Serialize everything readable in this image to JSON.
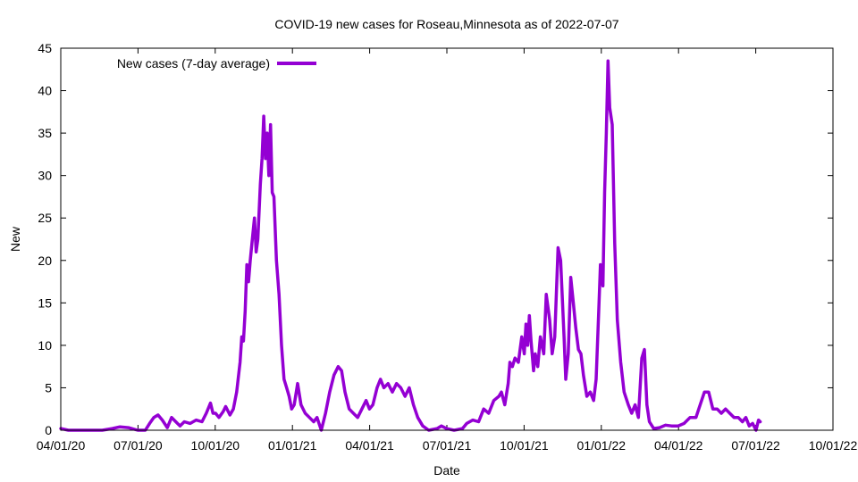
{
  "chart_data": {
    "type": "line",
    "title": "COVID-19 new cases for Roseau,Minnesota as of 2022-07-07",
    "xlabel": "Date",
    "ylabel": "New",
    "xlim": [
      "2020-04-01",
      "2022-10-01"
    ],
    "ylim": [
      0,
      45
    ],
    "grid": false,
    "legend_position": "top-left",
    "x_tick_labels": [
      "04/01/20",
      "07/01/20",
      "10/01/20",
      "01/01/21",
      "04/01/21",
      "07/01/21",
      "10/01/21",
      "01/01/22",
      "04/01/22",
      "07/01/22",
      "10/01/22"
    ],
    "y_tick_labels": [
      "0",
      "5",
      "10",
      "15",
      "20",
      "25",
      "30",
      "35",
      "40",
      "45"
    ],
    "series": [
      {
        "name": "New cases (7-day average)",
        "color": "#9400d3",
        "points": [
          [
            "2020-04-01",
            0.2
          ],
          [
            "2020-04-10",
            0
          ],
          [
            "2020-05-01",
            0
          ],
          [
            "2020-05-20",
            0
          ],
          [
            "2020-06-01",
            0.2
          ],
          [
            "2020-06-10",
            0.4
          ],
          [
            "2020-06-20",
            0.3
          ],
          [
            "2020-07-01",
            0
          ],
          [
            "2020-07-10",
            0
          ],
          [
            "2020-07-15",
            0.8
          ],
          [
            "2020-07-20",
            1.5
          ],
          [
            "2020-07-25",
            1.8
          ],
          [
            "2020-07-30",
            1.2
          ],
          [
            "2020-08-05",
            0.3
          ],
          [
            "2020-08-10",
            1.5
          ],
          [
            "2020-08-15",
            1.0
          ],
          [
            "2020-08-20",
            0.5
          ],
          [
            "2020-08-25",
            1.0
          ],
          [
            "2020-09-01",
            0.8
          ],
          [
            "2020-09-08",
            1.2
          ],
          [
            "2020-09-15",
            1.0
          ],
          [
            "2020-09-20",
            2.0
          ],
          [
            "2020-09-25",
            3.2
          ],
          [
            "2020-09-28",
            2.0
          ],
          [
            "2020-10-01",
            2.0
          ],
          [
            "2020-10-05",
            1.5
          ],
          [
            "2020-10-10",
            2.2
          ],
          [
            "2020-10-13",
            2.8
          ],
          [
            "2020-10-18",
            1.8
          ],
          [
            "2020-10-22",
            2.5
          ],
          [
            "2020-10-26",
            4.5
          ],
          [
            "2020-10-30",
            8.0
          ],
          [
            "2020-11-01",
            11.0
          ],
          [
            "2020-11-03",
            10.5
          ],
          [
            "2020-11-05",
            14.0
          ],
          [
            "2020-11-07",
            19.5
          ],
          [
            "2020-11-09",
            17.5
          ],
          [
            "2020-11-11",
            20.0
          ],
          [
            "2020-11-14",
            23.0
          ],
          [
            "2020-11-16",
            25.0
          ],
          [
            "2020-11-18",
            21.0
          ],
          [
            "2020-11-20",
            22.5
          ],
          [
            "2020-11-23",
            29.0
          ],
          [
            "2020-11-25",
            32.0
          ],
          [
            "2020-11-27",
            37.0
          ],
          [
            "2020-11-29",
            32.0
          ],
          [
            "2020-12-01",
            35.0
          ],
          [
            "2020-12-03",
            30.0
          ],
          [
            "2020-12-05",
            36.0
          ],
          [
            "2020-12-07",
            28.0
          ],
          [
            "2020-12-09",
            27.5
          ],
          [
            "2020-12-12",
            20.0
          ],
          [
            "2020-12-15",
            16.0
          ],
          [
            "2020-12-18",
            10.0
          ],
          [
            "2020-12-21",
            6.0
          ],
          [
            "2020-12-24",
            5.0
          ],
          [
            "2020-12-27",
            4.0
          ],
          [
            "2020-12-30",
            2.5
          ],
          [
            "2021-01-02",
            3.0
          ],
          [
            "2021-01-06",
            5.5
          ],
          [
            "2021-01-10",
            3.0
          ],
          [
            "2021-01-15",
            2.0
          ],
          [
            "2021-01-20",
            1.5
          ],
          [
            "2021-01-25",
            1.0
          ],
          [
            "2021-01-29",
            1.5
          ],
          [
            "2021-02-03",
            0
          ],
          [
            "2021-02-08",
            2.0
          ],
          [
            "2021-02-13",
            4.5
          ],
          [
            "2021-02-18",
            6.5
          ],
          [
            "2021-02-23",
            7.5
          ],
          [
            "2021-02-27",
            7.0
          ],
          [
            "2021-03-03",
            4.5
          ],
          [
            "2021-03-08",
            2.5
          ],
          [
            "2021-03-13",
            2.0
          ],
          [
            "2021-03-18",
            1.5
          ],
          [
            "2021-03-23",
            2.5
          ],
          [
            "2021-03-28",
            3.5
          ],
          [
            "2021-04-01",
            2.5
          ],
          [
            "2021-04-05",
            3.0
          ],
          [
            "2021-04-10",
            5.0
          ],
          [
            "2021-04-14",
            6.0
          ],
          [
            "2021-04-18",
            5.0
          ],
          [
            "2021-04-23",
            5.5
          ],
          [
            "2021-04-28",
            4.5
          ],
          [
            "2021-05-03",
            5.5
          ],
          [
            "2021-05-08",
            5.0
          ],
          [
            "2021-05-13",
            4.0
          ],
          [
            "2021-05-18",
            5.0
          ],
          [
            "2021-05-23",
            3.0
          ],
          [
            "2021-05-28",
            1.5
          ],
          [
            "2021-06-03",
            0.5
          ],
          [
            "2021-06-10",
            0
          ],
          [
            "2021-06-20",
            0.2
          ],
          [
            "2021-06-25",
            0.5
          ],
          [
            "2021-07-01",
            0.2
          ],
          [
            "2021-07-10",
            0
          ],
          [
            "2021-07-20",
            0.2
          ],
          [
            "2021-07-25",
            0.8
          ],
          [
            "2021-08-01",
            1.2
          ],
          [
            "2021-08-08",
            1.0
          ],
          [
            "2021-08-14",
            2.5
          ],
          [
            "2021-08-20",
            2.0
          ],
          [
            "2021-08-26",
            3.5
          ],
          [
            "2021-09-01",
            4.0
          ],
          [
            "2021-09-04",
            4.5
          ],
          [
            "2021-09-08",
            3.0
          ],
          [
            "2021-09-12",
            5.5
          ],
          [
            "2021-09-14",
            8.0
          ],
          [
            "2021-09-17",
            7.5
          ],
          [
            "2021-09-20",
            8.5
          ],
          [
            "2021-09-24",
            8.0
          ],
          [
            "2021-09-28",
            11.0
          ],
          [
            "2021-10-01",
            9.0
          ],
          [
            "2021-10-03",
            12.5
          ],
          [
            "2021-10-05",
            10.0
          ],
          [
            "2021-10-07",
            13.5
          ],
          [
            "2021-10-09",
            10.5
          ],
          [
            "2021-10-12",
            7.0
          ],
          [
            "2021-10-14",
            9.0
          ],
          [
            "2021-10-17",
            7.5
          ],
          [
            "2021-10-20",
            11.0
          ],
          [
            "2021-10-24",
            9.0
          ],
          [
            "2021-10-27",
            16.0
          ],
          [
            "2021-10-31",
            13.0
          ],
          [
            "2021-11-03",
            9.0
          ],
          [
            "2021-11-06",
            11.0
          ],
          [
            "2021-11-10",
            21.5
          ],
          [
            "2021-11-13",
            20.0
          ],
          [
            "2021-11-17",
            11.0
          ],
          [
            "2021-11-19",
            6.0
          ],
          [
            "2021-11-22",
            9.0
          ],
          [
            "2021-11-25",
            18.0
          ],
          [
            "2021-11-28",
            15.0
          ],
          [
            "2021-12-01",
            12.0
          ],
          [
            "2021-12-04",
            9.5
          ],
          [
            "2021-12-07",
            9.0
          ],
          [
            "2021-12-10",
            6.5
          ],
          [
            "2021-12-14",
            4.0
          ],
          [
            "2021-12-18",
            4.5
          ],
          [
            "2021-12-22",
            3.5
          ],
          [
            "2021-12-25",
            6.0
          ],
          [
            "2021-12-28",
            14.0
          ],
          [
            "2021-12-30",
            19.5
          ],
          [
            "2022-01-02",
            17.0
          ],
          [
            "2022-01-04",
            28.0
          ],
          [
            "2022-01-06",
            35.0
          ],
          [
            "2022-01-08",
            43.5
          ],
          [
            "2022-01-10",
            38.0
          ],
          [
            "2022-01-13",
            36.0
          ],
          [
            "2022-01-16",
            22.0
          ],
          [
            "2022-01-19",
            13.0
          ],
          [
            "2022-01-23",
            8.0
          ],
          [
            "2022-01-27",
            4.5
          ],
          [
            "2022-02-01",
            3.0
          ],
          [
            "2022-02-05",
            2.0
          ],
          [
            "2022-02-09",
            3.0
          ],
          [
            "2022-02-13",
            1.5
          ],
          [
            "2022-02-17",
            8.5
          ],
          [
            "2022-02-20",
            9.5
          ],
          [
            "2022-02-23",
            3.0
          ],
          [
            "2022-02-26",
            1.0
          ],
          [
            "2022-03-03",
            0.2
          ],
          [
            "2022-03-10",
            0.3
          ],
          [
            "2022-03-17",
            0.6
          ],
          [
            "2022-03-24",
            0.5
          ],
          [
            "2022-04-01",
            0.5
          ],
          [
            "2022-04-08",
            0.8
          ],
          [
            "2022-04-15",
            1.5
          ],
          [
            "2022-04-22",
            1.5
          ],
          [
            "2022-04-27",
            3.0
          ],
          [
            "2022-05-02",
            4.5
          ],
          [
            "2022-05-07",
            4.5
          ],
          [
            "2022-05-12",
            2.5
          ],
          [
            "2022-05-17",
            2.5
          ],
          [
            "2022-05-22",
            2.0
          ],
          [
            "2022-05-27",
            2.5
          ],
          [
            "2022-06-01",
            2.0
          ],
          [
            "2022-06-06",
            1.5
          ],
          [
            "2022-06-11",
            1.5
          ],
          [
            "2022-06-16",
            1.0
          ],
          [
            "2022-06-20",
            1.5
          ],
          [
            "2022-06-24",
            0.5
          ],
          [
            "2022-06-28",
            0.8
          ],
          [
            "2022-07-02",
            0
          ],
          [
            "2022-07-05",
            1.2
          ],
          [
            "2022-07-07",
            1.0
          ]
        ]
      }
    ]
  }
}
